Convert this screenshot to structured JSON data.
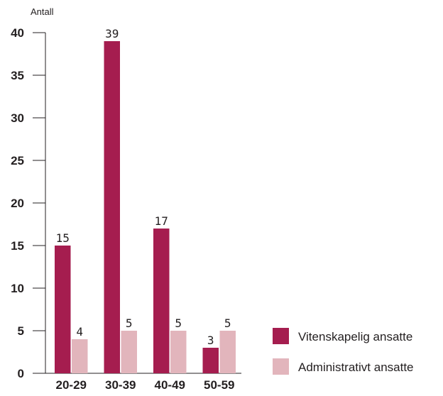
{
  "chart_data": {
    "type": "bar",
    "ylabel": "Antall",
    "xlabel": "",
    "ylim": [
      0,
      40
    ],
    "yticks": [
      0,
      5,
      10,
      15,
      20,
      25,
      30,
      35,
      40
    ],
    "categories": [
      "20-29",
      "30-39",
      "40-49",
      "50-59"
    ],
    "series": [
      {
        "name": "Vitenskapelig ansatte",
        "color": "#a51d4f",
        "values": [
          15,
          39,
          17,
          3
        ]
      },
      {
        "name": "Administrativt ansatte",
        "color": "#e2b5bc",
        "values": [
          4,
          5,
          5,
          5
        ]
      }
    ],
    "legend_position": "bottom-right",
    "grid": false
  }
}
